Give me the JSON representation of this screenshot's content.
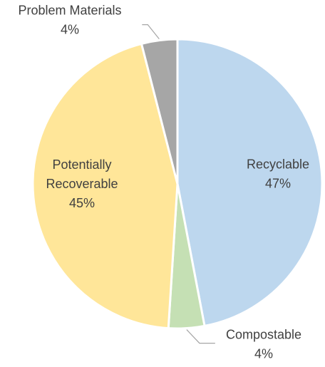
{
  "chart_data": {
    "type": "pie",
    "title": "",
    "slices": [
      {
        "label": "Recyclable",
        "label_lines": [
          "Recyclable"
        ],
        "value": 47,
        "value_label": "47%",
        "color": "#bdd7ee"
      },
      {
        "label": "Compostable",
        "label_lines": [
          "Compostable"
        ],
        "value": 4,
        "value_label": "4%",
        "color": "#c5e0b4"
      },
      {
        "label": "Potentially Recoverable",
        "label_lines": [
          "Potentially",
          "Recoverable"
        ],
        "value": 45,
        "value_label": "45%",
        "color": "#ffe699"
      },
      {
        "label": "Problem Materials",
        "label_lines": [
          "Problem Materials"
        ],
        "value": 4,
        "value_label": "4%",
        "color": "#a6a6a6"
      }
    ],
    "legend": "none"
  }
}
